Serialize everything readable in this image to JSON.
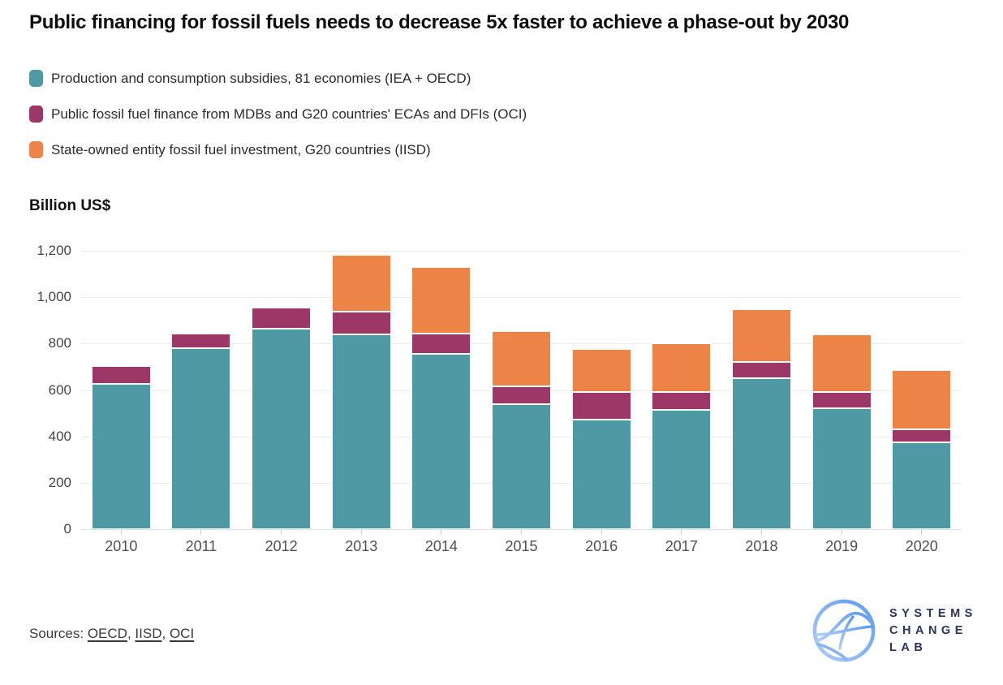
{
  "title": "Public financing for fossil fuels needs to decrease 5x faster to achieve a phase-out by 2030",
  "axis_title": "Billion US$",
  "colors": {
    "subsidies": "#4E99A3",
    "public_finance": "#9D3768",
    "soe_investment": "#ED8346",
    "gridline": "#ececec",
    "logo_navy": "#2b3560",
    "logo_blue_light": "#aecdf8",
    "logo_blue_dark": "#5d9bf2"
  },
  "chart_data": {
    "type": "bar",
    "stacked": true,
    "title": "Public financing for fossil fuels needs to decrease 5x faster to achieve a phase-out by 2030",
    "ylabel": "Billion US$",
    "xlabel": "",
    "ylim": [
      0,
      1200
    ],
    "y_ticks": [
      0,
      200,
      400,
      600,
      800,
      1000,
      1200
    ],
    "y_tick_labels": [
      "0",
      "200",
      "400",
      "600",
      "800",
      "1,000",
      "1,200"
    ],
    "grid": true,
    "legend_position": "top-left",
    "categories": [
      "2010",
      "2011",
      "2012",
      "2013",
      "2014",
      "2015",
      "2016",
      "2017",
      "2018",
      "2019",
      "2020"
    ],
    "series": [
      {
        "name": "Production and consumption subsidies, 81 economies (IEA + OECD)",
        "color": "#4E99A3",
        "values": [
          625,
          780,
          864,
          839,
          756,
          540,
          473,
          513,
          652,
          522,
          375
        ]
      },
      {
        "name": "Public fossil fuel finance from MDBs and G20 countries' ECAs and DFIs (OCI)",
        "color": "#9D3768",
        "values": [
          78,
          64,
          92,
          98,
          88,
          76,
          117,
          79,
          68,
          68,
          55
        ]
      },
      {
        "name": "State-owned entity fossil fuel investment, G20 countries (IISD)",
        "color": "#ED8346",
        "values": [
          0,
          0,
          0,
          246,
          285,
          238,
          187,
          210,
          229,
          251,
          255
        ]
      }
    ]
  },
  "sources": {
    "prefix": "Sources:",
    "links": [
      "OECD",
      "IISD",
      "OCI"
    ],
    "separator": ", "
  },
  "logo": {
    "lines": [
      "SYSTEMS",
      "CHANGE",
      "LAB"
    ]
  }
}
